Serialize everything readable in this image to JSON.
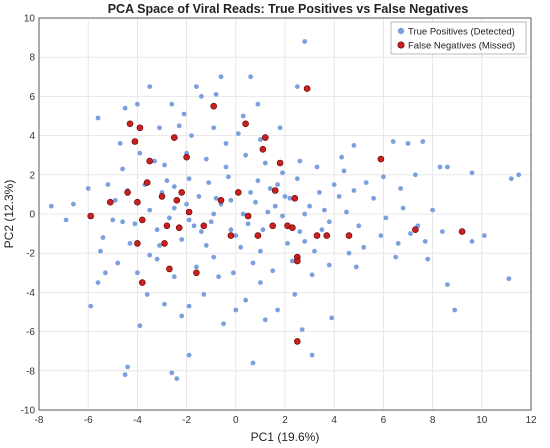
{
  "chart_data": {
    "type": "scatter",
    "title": "PCA Space of Viral Reads: True Positives vs False Negatives",
    "xlabel": "PC1 (19.6%)",
    "ylabel": "PC2 (12.3%)",
    "xlim": [
      -8,
      12
    ],
    "ylim": [
      -10,
      10
    ],
    "xticks": [
      "-8",
      "-6",
      "-4",
      "-2",
      "0",
      "2",
      "4",
      "6",
      "8",
      "10",
      "12"
    ],
    "yticks": [
      "-10",
      "-8",
      "-6",
      "-4",
      "-2",
      "0",
      "2",
      "4",
      "6",
      "8",
      "10"
    ],
    "grid": true,
    "legend_position": "top-right",
    "series": [
      {
        "name": "True Positives (Detected)",
        "color": "#7aa0e0",
        "points": [
          [
            -4.0,
            5.6
          ],
          [
            -3.5,
            6.5
          ],
          [
            -2.6,
            5.6
          ],
          [
            -2.1,
            5.1
          ],
          [
            -1.6,
            6.5
          ],
          [
            -0.6,
            7.0
          ],
          [
            0.6,
            7.0
          ],
          [
            2.5,
            6.5
          ],
          [
            2.8,
            8.8
          ],
          [
            -4.5,
            5.4
          ],
          [
            -5.6,
            4.9
          ],
          [
            -3.1,
            4.4
          ],
          [
            -2.3,
            4.5
          ],
          [
            -0.4,
            3.6
          ],
          [
            1.8,
            4.4
          ],
          [
            4.3,
            2.9
          ],
          [
            4.8,
            3.5
          ],
          [
            6.4,
            3.7
          ],
          [
            7.0,
            3.6
          ],
          [
            7.6,
            3.7
          ],
          [
            8.3,
            2.4
          ],
          [
            8.6,
            2.4
          ],
          [
            9.6,
            2.1
          ],
          [
            11.2,
            1.8
          ],
          [
            11.5,
            2.0
          ],
          [
            -7.5,
            0.4
          ],
          [
            -6.9,
            -0.3
          ],
          [
            -6.6,
            0.5
          ],
          [
            -6.0,
            1.3
          ],
          [
            -5.4,
            -1.2
          ],
          [
            -5.9,
            -4.7
          ],
          [
            -5.6,
            -3.5
          ],
          [
            -5.5,
            -1.9
          ],
          [
            -4.5,
            -8.2
          ],
          [
            -2.6,
            -8.1
          ],
          [
            -1.9,
            -7.2
          ],
          [
            0.7,
            -7.6
          ],
          [
            3.1,
            -7.2
          ],
          [
            -2.4,
            -8.4
          ],
          [
            -3.9,
            -5.7
          ],
          [
            3.9,
            -5.3
          ],
          [
            4.6,
            -2.0
          ],
          [
            4.9,
            -2.7
          ],
          [
            6.5,
            -2.2
          ],
          [
            7.1,
            -1.0
          ],
          [
            7.8,
            -2.3
          ],
          [
            8.4,
            -0.9
          ],
          [
            8.6,
            -3.6
          ],
          [
            8.9,
            -4.9
          ],
          [
            9.6,
            -1.4
          ],
          [
            10.1,
            -1.1
          ],
          [
            11.1,
            -3.3
          ],
          [
            -4.4,
            -7.8
          ],
          [
            -1.9,
            -4.7
          ],
          [
            0.0,
            -4.9
          ],
          [
            1.2,
            -5.4
          ],
          [
            2.7,
            -5.9
          ],
          [
            -0.7,
            -3.2
          ],
          [
            1.0,
            -3.5
          ],
          [
            -3.3,
            2.7
          ],
          [
            -3.0,
            1.1
          ],
          [
            -2.5,
            0.3
          ],
          [
            -1.9,
            -0.3
          ],
          [
            -1.5,
            0.9
          ],
          [
            -1.1,
            1.6
          ],
          [
            -0.6,
            0.5
          ],
          [
            -0.2,
            -0.8
          ],
          [
            0.3,
            0.0
          ],
          [
            0.8,
            0.6
          ],
          [
            1.4,
            1.3
          ],
          [
            1.9,
            -0.1
          ],
          [
            2.2,
            0.8
          ],
          [
            2.6,
            -0.9
          ],
          [
            3.0,
            0.4
          ],
          [
            3.4,
            1.1
          ],
          [
            3.8,
            -0.4
          ],
          [
            4.2,
            0.9
          ],
          [
            -4.9,
            0.7
          ],
          [
            -4.1,
            -0.5
          ],
          [
            -3.7,
            1.5
          ],
          [
            -3.2,
            -0.8
          ],
          [
            -2.8,
            1.7
          ],
          [
            -2.2,
            -1.3
          ],
          [
            -1.7,
            -0.6
          ],
          [
            -1.2,
            -1.6
          ],
          [
            -0.8,
            0.8
          ],
          [
            -0.3,
            1.9
          ],
          [
            0.2,
            -1.7
          ],
          [
            0.6,
            1.1
          ],
          [
            1.1,
            -0.8
          ],
          [
            1.6,
            0.4
          ],
          [
            2.1,
            -1.5
          ],
          [
            2.5,
            1.8
          ],
          [
            3.2,
            -1.9
          ],
          [
            3.6,
            0.2
          ],
          [
            -4.6,
            2.3
          ],
          [
            -3.9,
            3.1
          ],
          [
            -2.9,
            2.5
          ],
          [
            -2.0,
            3.1
          ],
          [
            -1.2,
            2.8
          ],
          [
            -0.4,
            2.4
          ],
          [
            0.4,
            3.0
          ],
          [
            1.2,
            2.6
          ],
          [
            1.9,
            2.1
          ],
          [
            2.6,
            2.7
          ],
          [
            3.3,
            2.4
          ],
          [
            -4.8,
            -2.5
          ],
          [
            -4.0,
            -3.0
          ],
          [
            -3.2,
            -2.3
          ],
          [
            -2.5,
            -3.2
          ],
          [
            -1.6,
            -2.7
          ],
          [
            -0.9,
            -2.2
          ],
          [
            -0.1,
            -3.0
          ],
          [
            0.7,
            -2.5
          ],
          [
            1.5,
            -2.9
          ],
          [
            2.3,
            -2.4
          ],
          [
            3.1,
            -3.1
          ],
          [
            -5.2,
            1.5
          ],
          [
            -5.0,
            -0.3
          ],
          [
            -4.4,
            1.2
          ],
          [
            -3.5,
            0.2
          ],
          [
            -2.7,
            -0.2
          ],
          [
            -2.0,
            0.5
          ],
          [
            -1.4,
            -0.9
          ],
          [
            -0.9,
            0.0
          ],
          [
            -0.2,
            0.7
          ],
          [
            0.5,
            -0.5
          ],
          [
            1.3,
            0.1
          ],
          [
            2.0,
            0.9
          ],
          [
            2.8,
            0.0
          ],
          [
            3.5,
            -0.8
          ],
          [
            4.5,
            0.1
          ],
          [
            5.0,
            -0.6
          ],
          [
            5.6,
            0.8
          ],
          [
            6.1,
            -0.2
          ],
          [
            6.8,
            0.3
          ],
          [
            7.4,
            -0.6
          ],
          [
            8.0,
            0.2
          ],
          [
            5.3,
            1.6
          ],
          [
            6.0,
            1.9
          ],
          [
            6.7,
            1.3
          ],
          [
            7.3,
            2.0
          ],
          [
            5.2,
            -1.7
          ],
          [
            5.9,
            -1.1
          ],
          [
            6.6,
            -1.5
          ],
          [
            7.7,
            -1.4
          ],
          [
            4.4,
            2.2
          ],
          [
            -1.8,
            4.0
          ],
          [
            -0.9,
            4.4
          ],
          [
            0.1,
            4.1
          ],
          [
            1.0,
            3.8
          ],
          [
            -3.6,
            -4.1
          ],
          [
            -2.9,
            -4.6
          ],
          [
            -2.2,
            -5.2
          ],
          [
            -1.3,
            -4.1
          ],
          [
            -0.5,
            -5.6
          ],
          [
            0.4,
            -4.4
          ],
          [
            1.7,
            -4.9
          ],
          [
            2.4,
            -4.1
          ],
          [
            -1.4,
            6.0
          ],
          [
            0.9,
            5.6
          ],
          [
            -2.5,
            1.4
          ],
          [
            -1.9,
            1.8
          ],
          [
            0.9,
            1.7
          ],
          [
            1.7,
            1.5
          ],
          [
            -3.1,
            -1.6
          ],
          [
            -1.0,
            -0.4
          ],
          [
            0.0,
            -1.1
          ],
          [
            1.0,
            -1.9
          ],
          [
            2.8,
            -1.4
          ],
          [
            -4.3,
            -1.5
          ],
          [
            -3.5,
            -2.1
          ],
          [
            -4.6,
            -0.4
          ],
          [
            4.0,
            1.5
          ],
          [
            3.8,
            -2.6
          ],
          [
            -5.3,
            -3.0
          ],
          [
            -4.7,
            3.6
          ],
          [
            4.8,
            1.2
          ],
          [
            0.3,
            5.0
          ],
          [
            -0.8,
            6.1
          ]
        ]
      },
      {
        "name": "False Negatives (Missed)",
        "color": "#cc1f1f",
        "points": [
          [
            -4.3,
            4.6
          ],
          [
            -3.9,
            4.4
          ],
          [
            -4.1,
            3.7
          ],
          [
            -2.5,
            3.9
          ],
          [
            -0.9,
            5.5
          ],
          [
            0.4,
            4.6
          ],
          [
            2.9,
            6.4
          ],
          [
            -3.5,
            2.7
          ],
          [
            -2.0,
            2.9
          ],
          [
            1.1,
            3.3
          ],
          [
            1.2,
            3.9
          ],
          [
            1.8,
            2.6
          ],
          [
            -4.4,
            1.1
          ],
          [
            -3.6,
            1.6
          ],
          [
            -3.0,
            0.9
          ],
          [
            -2.2,
            1.1
          ],
          [
            -2.4,
            0.7
          ],
          [
            -1.9,
            0.1
          ],
          [
            -0.6,
            0.7
          ],
          [
            0.1,
            1.1
          ],
          [
            0.5,
            -0.1
          ],
          [
            1.6,
            1.2
          ],
          [
            2.1,
            -0.6
          ],
          [
            2.4,
            0.8
          ],
          [
            -5.9,
            -0.1
          ],
          [
            -5.1,
            0.6
          ],
          [
            -4.0,
            0.6
          ],
          [
            -3.8,
            -0.3
          ],
          [
            -2.8,
            -0.6
          ],
          [
            -2.3,
            -0.7
          ],
          [
            -1.3,
            -0.6
          ],
          [
            -0.2,
            -1.1
          ],
          [
            0.9,
            -1.1
          ],
          [
            1.5,
            -0.6
          ],
          [
            2.3,
            -0.7
          ],
          [
            3.3,
            -1.1
          ],
          [
            3.7,
            -1.1
          ],
          [
            4.6,
            -1.1
          ],
          [
            5.9,
            2.8
          ],
          [
            7.3,
            -0.8
          ],
          [
            9.2,
            -0.9
          ],
          [
            -4.0,
            -1.5
          ],
          [
            -2.9,
            -1.5
          ],
          [
            2.5,
            -2.2
          ],
          [
            2.5,
            -2.4
          ],
          [
            -2.7,
            -2.8
          ],
          [
            -3.8,
            -3.5
          ],
          [
            -1.6,
            -3.0
          ],
          [
            2.5,
            -6.5
          ]
        ]
      }
    ]
  }
}
